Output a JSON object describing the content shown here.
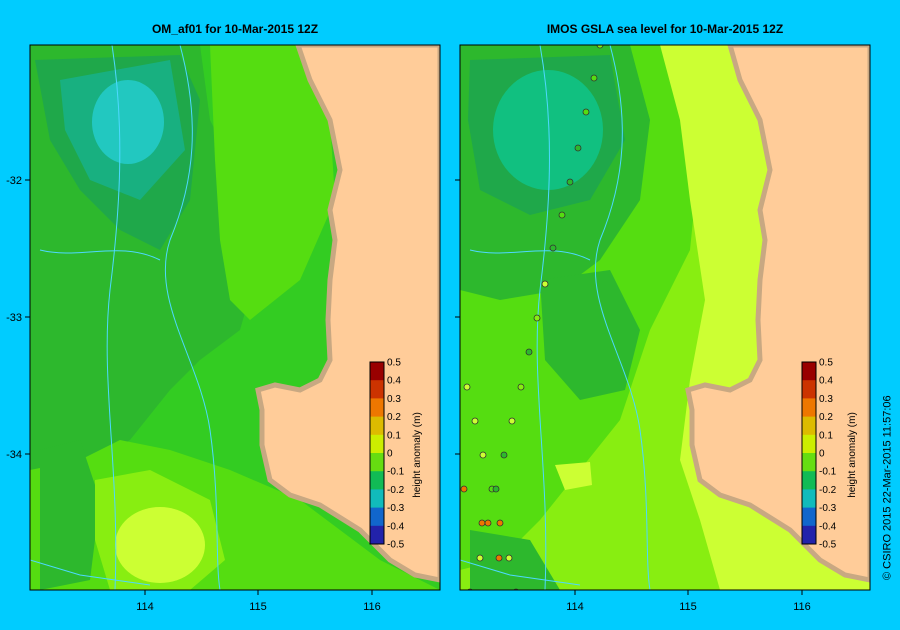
{
  "panels": [
    {
      "title": "OM_af01  for 10-Mar-2015 12Z"
    },
    {
      "title": "IMOS GSLA sea level  for 10-Mar-2015 12Z"
    }
  ],
  "axes": {
    "x_ticks": [
      "114",
      "115",
      "116"
    ],
    "y_ticks": [
      "-32",
      "-33",
      "-34"
    ]
  },
  "colorbar": {
    "label": "height anomaly (m)",
    "ticks": [
      "0.5",
      "0.4",
      "0.3",
      "0.2",
      "0.1",
      "0",
      "-0.1",
      "-0.2",
      "-0.3",
      "-0.4",
      "-0.5"
    ]
  },
  "credit": "© CSIRO 2015   22-Mar-2015 11:57:06",
  "colors": {
    "background": "#00ccff",
    "land": "#ffcc99",
    "coast": "#c8a882",
    "contours": "#4dd9ff"
  }
}
